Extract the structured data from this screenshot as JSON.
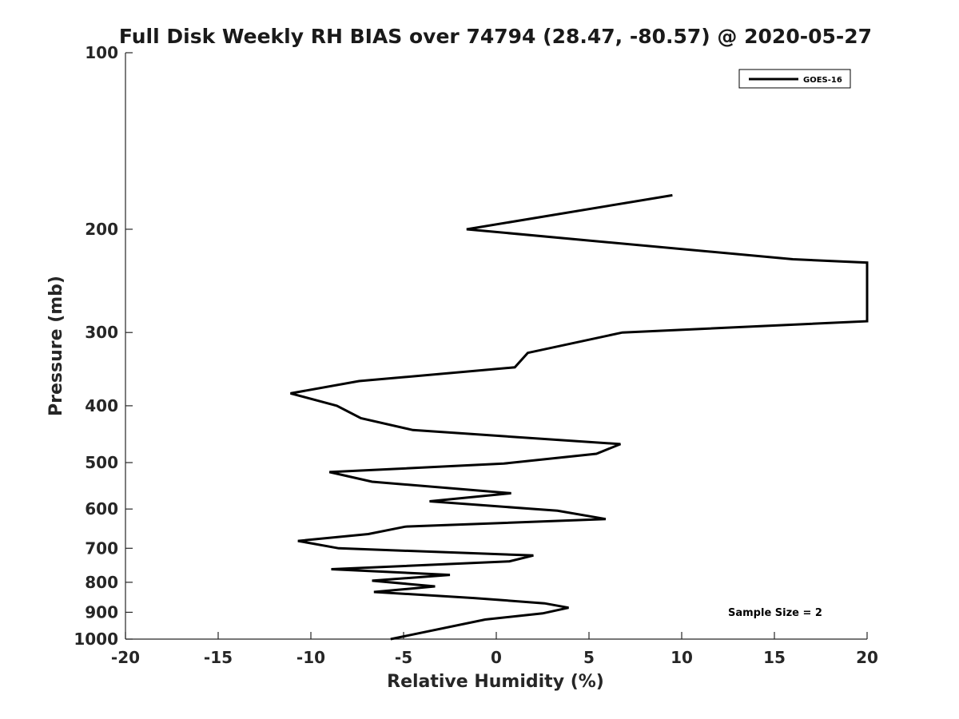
{
  "chart_data": {
    "type": "line",
    "title": "Full Disk Weekly RH BIAS over 74794 (28.47, -80.57) @ 2020-05-27",
    "xlabel": "Relative Humidity (%)",
    "ylabel": "Pressure (mb)",
    "xlim": [
      -20,
      20
    ],
    "ylim": [
      100,
      1000
    ],
    "y_scale": "log",
    "y_reversed": true,
    "grid": false,
    "legend_position": "top-right",
    "x_ticks": [
      "-20",
      "-15",
      "-10",
      "-5",
      "0",
      "5",
      "10",
      "15",
      "20"
    ],
    "y_ticks": [
      "100",
      "200",
      "300",
      "400",
      "500",
      "600",
      "700",
      "800",
      "900",
      "1000"
    ],
    "annotation": "Sample Size = 2",
    "series": [
      {
        "name": "GOES-16",
        "color": "#000000",
        "points": [
          [
            9.5,
            175
          ],
          [
            -1.6,
            200
          ],
          [
            16.0,
            225
          ],
          [
            20.0,
            228
          ],
          [
            20.0,
            287
          ],
          [
            6.8,
            300
          ],
          [
            1.7,
            325
          ],
          [
            1.0,
            344
          ],
          [
            -7.4,
            363
          ],
          [
            -11.1,
            381
          ],
          [
            -8.6,
            400
          ],
          [
            -7.3,
            420
          ],
          [
            -4.5,
            440
          ],
          [
            6.7,
            465
          ],
          [
            5.4,
            483
          ],
          [
            0.4,
            502
          ],
          [
            -9.0,
            519
          ],
          [
            -6.7,
            539
          ],
          [
            0.8,
            564
          ],
          [
            -3.6,
            582
          ],
          [
            3.3,
            604
          ],
          [
            5.9,
            624
          ],
          [
            -4.9,
            643
          ],
          [
            -6.9,
            662
          ],
          [
            -10.7,
            680
          ],
          [
            -8.5,
            700
          ],
          [
            2.0,
            720
          ],
          [
            0.7,
            737
          ],
          [
            -8.9,
            760
          ],
          [
            -2.5,
            777
          ],
          [
            -6.7,
            795
          ],
          [
            -3.3,
            813
          ],
          [
            -6.6,
            831
          ],
          [
            -1.2,
            851
          ],
          [
            2.6,
            869
          ],
          [
            3.9,
            884
          ],
          [
            2.5,
            904
          ],
          [
            -0.6,
            926
          ],
          [
            -5.7,
            1000
          ]
        ]
      }
    ]
  }
}
